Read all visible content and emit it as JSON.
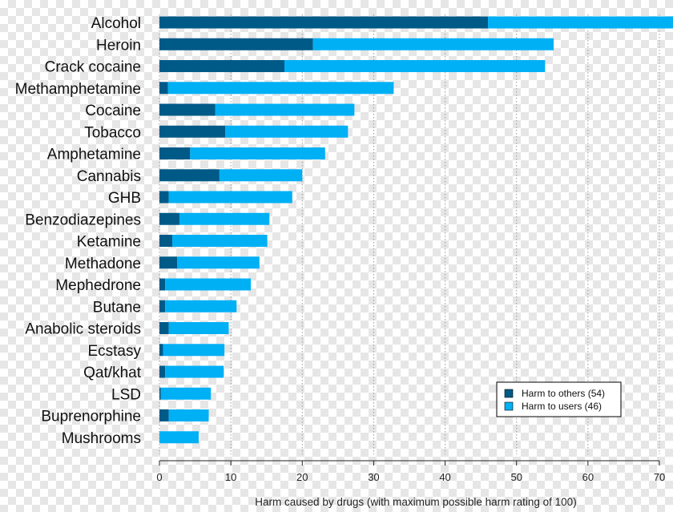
{
  "chart_data": {
    "type": "bar",
    "orientation": "horizontal",
    "stacked": true,
    "categories": [
      "Alcohol",
      "Heroin",
      "Crack cocaine",
      "Methamphetamine",
      "Cocaine",
      "Tobacco",
      "Amphetamine",
      "Cannabis",
      "GHB",
      "Benzodiazepines",
      "Ketamine",
      "Methadone",
      "Mephedrone",
      "Butane",
      "Anabolic steroids",
      "Ecstasy",
      "Qat/khat",
      "LSD",
      "Buprenorphine",
      "Mushrooms"
    ],
    "series": [
      {
        "name": "Harm to others (54)",
        "color": "#005a87",
        "values": [
          46,
          21.5,
          17.5,
          1.2,
          7.8,
          9.2,
          4.3,
          8.4,
          1.3,
          2.8,
          1.8,
          2.5,
          0.8,
          0.8,
          1.3,
          0.5,
          0.8,
          0.2,
          1.3,
          0
        ]
      },
      {
        "name": "Harm to users (46)",
        "color": "#00b0f5",
        "values": [
          26,
          33.7,
          36.5,
          31.6,
          19.5,
          17.2,
          18.9,
          11.6,
          17.3,
          12.6,
          13.3,
          11.5,
          12,
          10,
          8.4,
          8.6,
          8.2,
          7,
          5.6,
          5.5
        ]
      }
    ],
    "x_ticks": [
      0,
      10,
      20,
      30,
      40,
      50,
      60,
      70
    ],
    "xlim": [
      0,
      70
    ],
    "xlabel": "Harm caused by drugs (with maximum possible harm rating of 100)",
    "grid": "vertical dotted",
    "legend_position": "bottom-right"
  }
}
